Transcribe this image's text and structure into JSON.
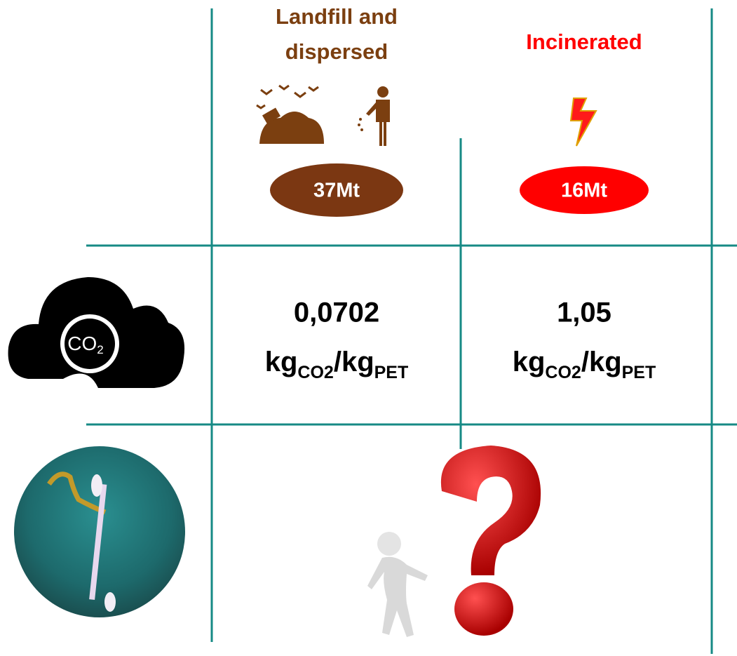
{
  "columns": [
    {
      "title_lines": [
        "Landfill and",
        "dispersed"
      ],
      "amount": "37Mt",
      "co2_value": "0,0702",
      "unit": {
        "base": "kg",
        "base_sub": "CO2",
        "per": "/kg",
        "per_sub": "PET"
      }
    },
    {
      "title_lines": [
        "Incinerated"
      ],
      "amount": "16Mt",
      "co2_value": "1,05",
      "unit": {
        "base": "kg",
        "base_sub": "CO2",
        "per": "/kg",
        "per_sub": "PET"
      }
    }
  ],
  "icons": {
    "co2_label": "CO",
    "co2_sub": "2"
  }
}
